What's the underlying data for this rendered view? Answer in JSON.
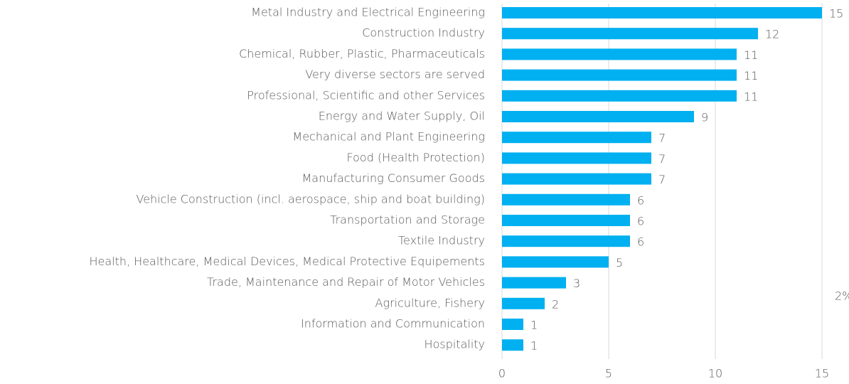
{
  "chart_data": {
    "type": "bar",
    "orientation": "horizontal",
    "categories": [
      "Metal Industry and Electrical Engineering",
      "Construction Industry",
      "Chemical, Rubber, Plastic, Pharmaceuticals",
      "Very diverse sectors are served",
      "Professional, Scientific and other Services",
      "Energy and Water Supply, Oil",
      "Mechanical and Plant Engineering",
      "Food (Health Protection)",
      "Manufacturing Consumer Goods",
      "Vehicle Construction (incl. aerospace, ship and boat building)",
      "Transportation and Storage",
      "Textile Industry",
      "Health, Healthcare, Medical Devices, Medical Protective Equipements",
      "Trade, Maintenance and Repair of Motor Vehicles",
      "Agriculture, Fishery",
      "Information and Communication",
      "Hospitality"
    ],
    "values": [
      15,
      12,
      11,
      11,
      11,
      9,
      7,
      7,
      7,
      6,
      6,
      6,
      5,
      3,
      2,
      1,
      1
    ],
    "color": "#00b0f0",
    "xlim": [
      0,
      15
    ],
    "xticks": [
      0,
      5,
      10,
      15
    ],
    "grid": true,
    "annotations": [
      "2%"
    ]
  }
}
